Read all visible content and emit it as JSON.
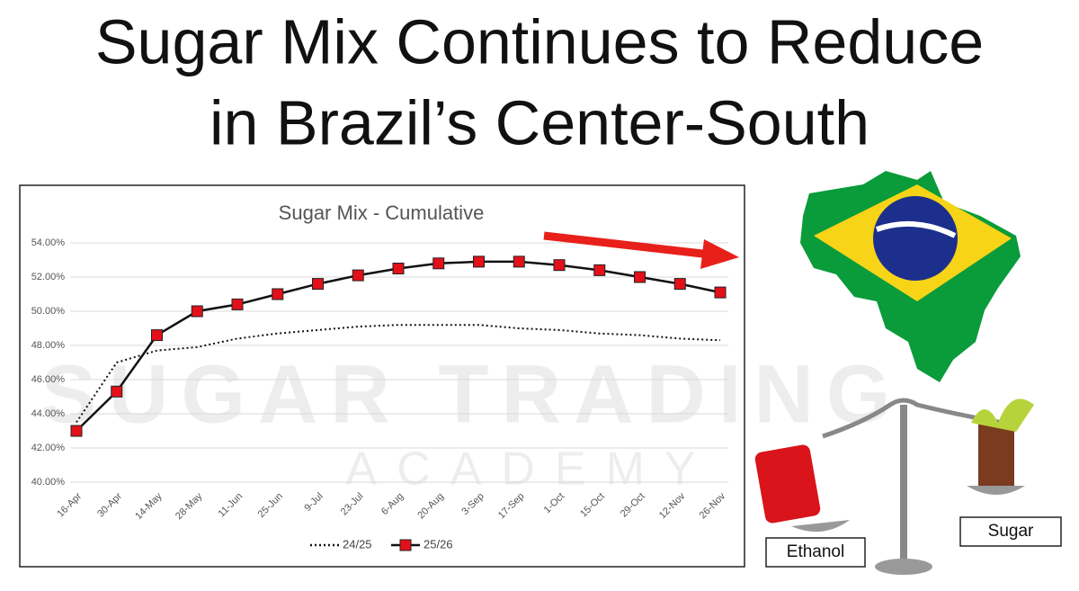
{
  "headline": [
    "Sugar Mix Continues to Reduce",
    "in Brazil’s Center-South"
  ],
  "watermark": [
    "SUGAR TRADING",
    "ACADEMY"
  ],
  "scale": {
    "left": "Ethanol",
    "right": "Sugar"
  },
  "chart_data": {
    "type": "line",
    "title": "Sugar Mix - Cumulative",
    "categories": [
      "16-Apr",
      "30-Apr",
      "14-May",
      "28-May",
      "11-Jun",
      "25-Jun",
      "9-Jul",
      "23-Jul",
      "6-Aug",
      "20-Aug",
      "3-Sep",
      "17-Sep",
      "1-Oct",
      "15-Oct",
      "29-Oct",
      "12-Nov",
      "26-Nov"
    ],
    "series": [
      {
        "name": "24/25",
        "color": "#111111",
        "style": "dotted",
        "values": [
          43.5,
          47.0,
          47.7,
          47.9,
          48.4,
          48.7,
          48.9,
          49.1,
          49.2,
          49.2,
          49.2,
          49.0,
          48.9,
          48.7,
          48.6,
          48.4,
          48.3
        ]
      },
      {
        "name": "25/26",
        "color": "#111111",
        "marker_color": "#e3101a",
        "style": "solid",
        "values": [
          43.0,
          45.3,
          48.6,
          50.0,
          50.4,
          51.0,
          51.6,
          52.1,
          52.5,
          52.8,
          52.9,
          52.9,
          52.7,
          52.4,
          52.0,
          51.6,
          51.1
        ]
      }
    ],
    "ylim": [
      40,
      54
    ],
    "yticks": [
      {
        "value": 40,
        "label": "40.00%"
      },
      {
        "value": 42,
        "label": "42.00%"
      },
      {
        "value": 44,
        "label": "44.00%"
      },
      {
        "value": 46,
        "label": "46.00%"
      },
      {
        "value": 48,
        "label": "48.00%"
      },
      {
        "value": 50,
        "label": "50.00%"
      },
      {
        "value": 52,
        "label": "52.00%"
      },
      {
        "value": 54,
        "label": "54.00%"
      }
    ],
    "grid": true,
    "legend": "bottom"
  }
}
